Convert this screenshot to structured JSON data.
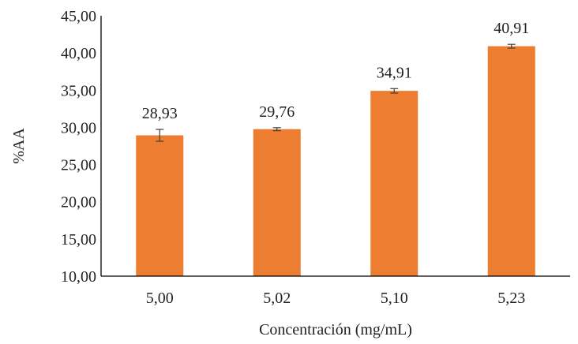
{
  "chart_data": {
    "type": "bar",
    "title": "",
    "xlabel": "Concentración (mg/mL)",
    "ylabel": "%AA",
    "categories": [
      "5,00",
      "5,02",
      "5,10",
      "5,23"
    ],
    "values": [
      28.93,
      29.76,
      34.91,
      40.91
    ],
    "value_labels": [
      "28,93",
      "29,76",
      "34,91",
      "40,91"
    ],
    "errors": [
      0.8,
      0.2,
      0.3,
      0.25
    ],
    "ylim": [
      10,
      45
    ],
    "yticks": [
      10,
      15,
      20,
      25,
      30,
      35,
      40,
      45
    ],
    "ytick_labels": [
      "10,00",
      "15,00",
      "20,00",
      "25,00",
      "30,00",
      "35,00",
      "40,00",
      "45,00"
    ],
    "grid": false,
    "legend": "none",
    "colors": {
      "bar": "#ED7D31",
      "axis": "#000000",
      "error": "#404040"
    }
  }
}
